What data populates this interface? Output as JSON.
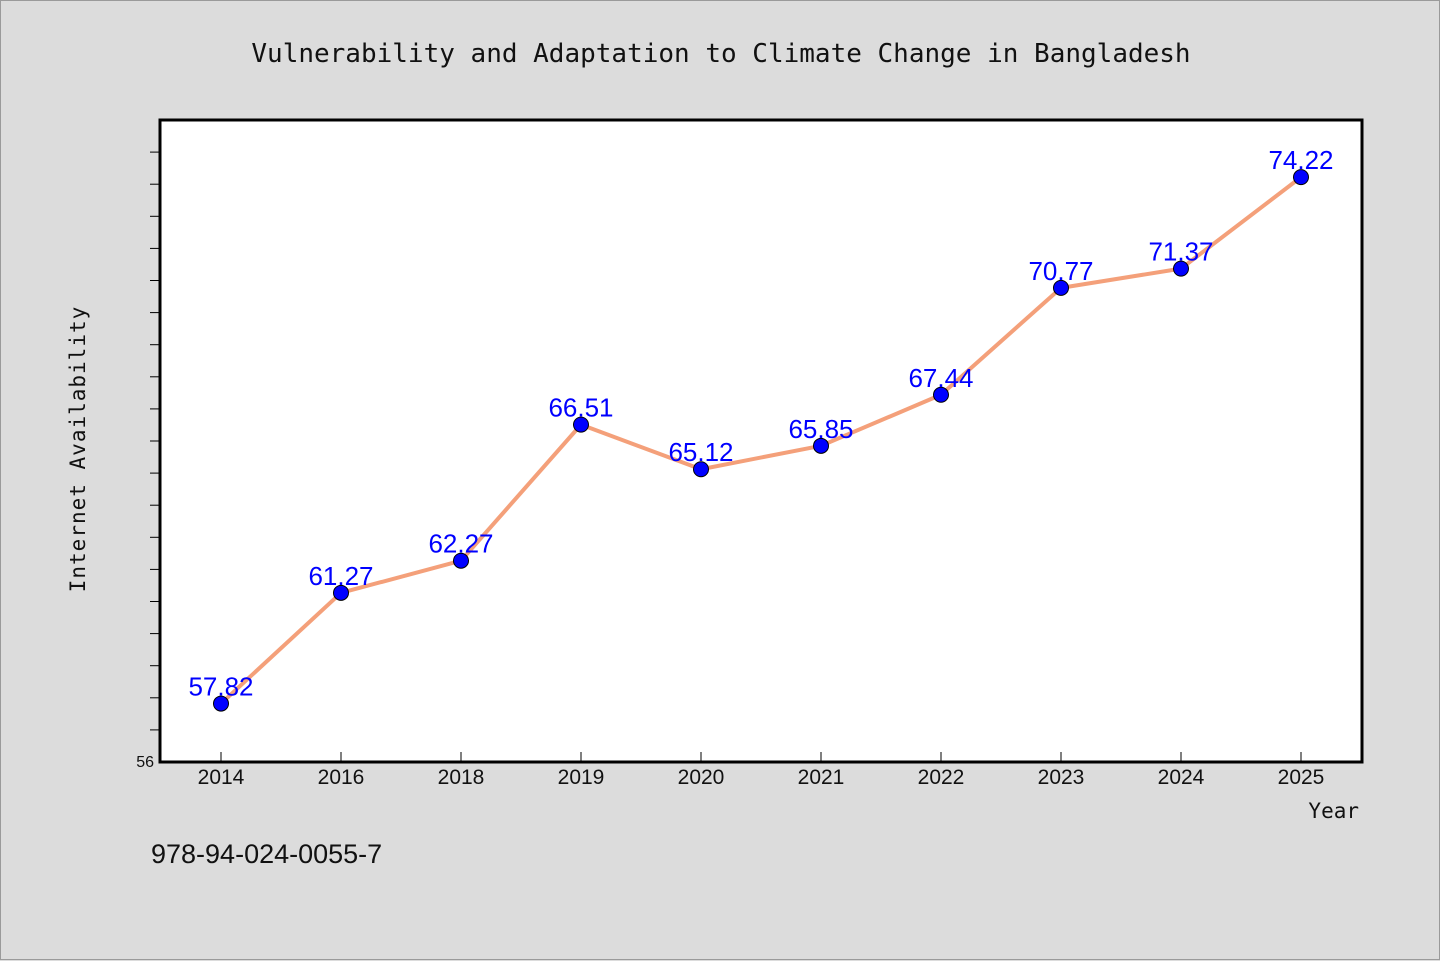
{
  "chart_data": {
    "type": "line",
    "title": "Vulnerability and Adaptation to Climate Change in Bangladesh",
    "xlabel": "Year",
    "ylabel": "Internet Availability",
    "categories": [
      "2014",
      "2016",
      "2018",
      "2019",
      "2020",
      "2021",
      "2022",
      "2023",
      "2024",
      "2025"
    ],
    "series": [
      {
        "values": [
          57.82,
          61.27,
          62.27,
          66.51,
          65.12,
          65.85,
          67.44,
          70.77,
          71.37,
          74.22
        ],
        "labels": [
          "57.82",
          "61.27",
          "62.27",
          "66.51",
          "65.12",
          "65.85",
          "67.44",
          "70.77",
          "71.37",
          "74.22"
        ],
        "line_color": "#f4a07a",
        "marker_color": "#0000ff"
      }
    ],
    "ylim": [
      56,
      76
    ],
    "yticks_labeled": [
      "56"
    ],
    "legend": "none",
    "grid": false,
    "data_label_color": "#0000ff"
  },
  "annotation": {
    "text": "978-94-024-0055-7"
  },
  "colors": {
    "background": "#dcdcdc",
    "plot_background": "#ffffff"
  }
}
